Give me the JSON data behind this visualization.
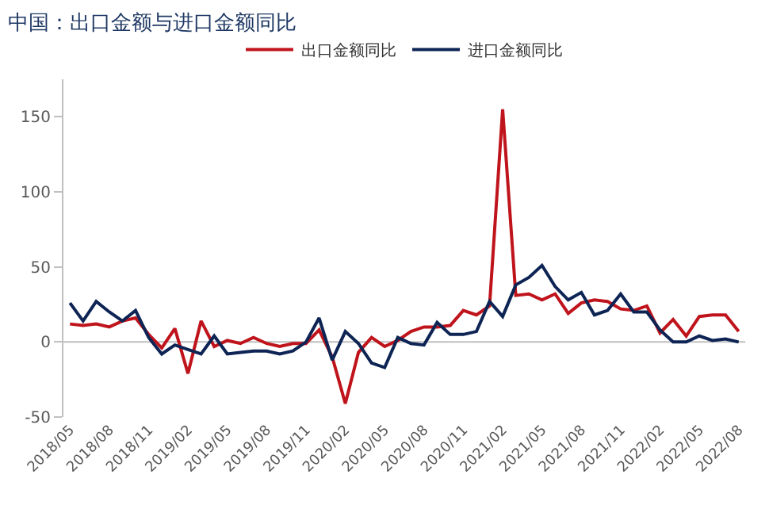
{
  "chart_data": {
    "type": "line",
    "title": "中国：出口金额与进口金额同比",
    "categories": [
      "2018/05",
      null,
      null,
      "2018/08",
      null,
      null,
      "2018/11",
      null,
      null,
      "2019/02",
      null,
      null,
      "2019/05",
      null,
      null,
      "2019/08",
      null,
      null,
      "2019/11",
      null,
      null,
      "2020/02",
      null,
      null,
      "2020/05",
      null,
      null,
      "2020/08",
      null,
      null,
      "2020/11",
      null,
      null,
      "2021/02",
      null,
      null,
      "2021/05",
      null,
      null,
      "2021/08",
      null,
      null,
      "2021/11",
      null,
      null,
      "2022/02",
      null,
      null,
      "2022/05",
      null,
      null,
      "2022/08"
    ],
    "series": [
      {
        "name": "出口金额同比",
        "color": "#c0141c",
        "values": [
          12,
          11,
          12,
          10,
          14,
          16,
          5,
          -4,
          9,
          -21,
          14,
          -3,
          1,
          -1,
          3,
          -1,
          -3,
          -1,
          -1,
          8,
          -10,
          -41,
          -7,
          3,
          -3,
          1,
          7,
          10,
          10,
          11,
          21,
          18,
          24,
          155,
          31,
          32,
          28,
          32,
          19,
          26,
          28,
          27,
          22,
          21,
          24,
          6,
          15,
          4,
          17,
          18,
          18,
          7
        ]
      },
      {
        "name": "进口金额同比",
        "color": "#0d2454",
        "values": [
          26,
          14,
          27,
          20,
          14,
          21,
          3,
          -8,
          -2,
          -5,
          -8,
          4,
          -8,
          -7,
          -6,
          -6,
          -8,
          -6,
          0,
          16,
          -12,
          7,
          -1,
          -14,
          -17,
          3,
          -1,
          -2,
          13,
          5,
          5,
          7,
          27,
          17,
          38,
          43,
          51,
          37,
          28,
          33,
          18,
          21,
          32,
          20,
          20,
          8,
          0,
          0,
          4,
          1,
          2,
          0
        ]
      }
    ],
    "ylim": [
      -50,
      175
    ],
    "yticks": [
      -50,
      0,
      50,
      100,
      150
    ],
    "ref_lines": [
      {
        "axis": "y",
        "value": 0,
        "color": "#bfbfbf"
      }
    ],
    "legend": "top",
    "line_style": "solid",
    "marker": "none"
  }
}
